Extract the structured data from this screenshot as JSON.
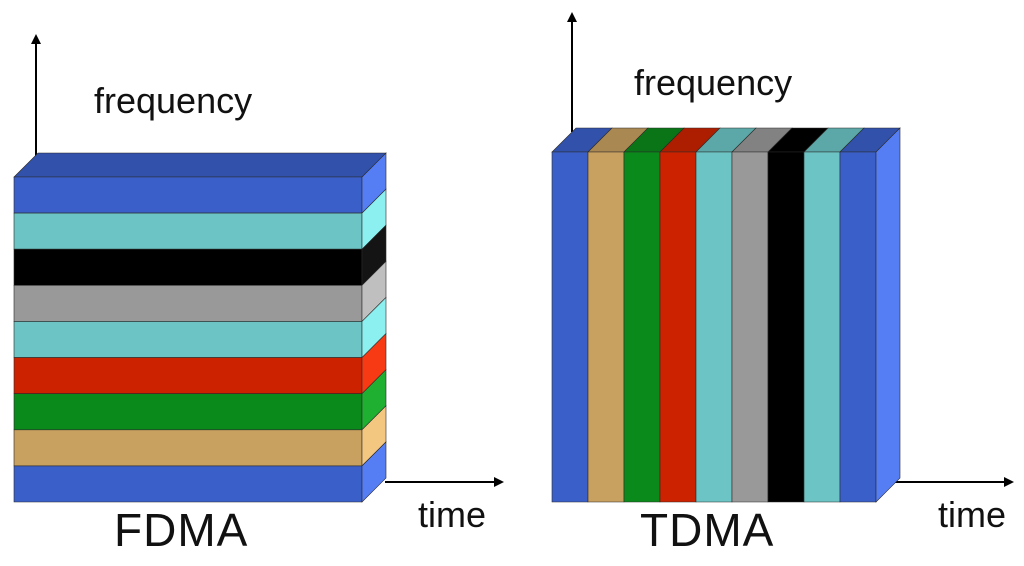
{
  "fdma": {
    "y_axis_label": "frequency",
    "x_axis_label": "time",
    "title": "FDMA",
    "bands": [
      "#3a5fc8",
      "#6cc4c4",
      "#000000",
      "#999999",
      "#6cc4c4",
      "#cc2200",
      "#0a8a1a",
      "#c8a060",
      "#3a5fc8"
    ]
  },
  "tdma": {
    "y_axis_label": "frequency",
    "x_axis_label": "time",
    "title": "TDMA",
    "slots": [
      "#3a5fc8",
      "#c8a060",
      "#0a8a1a",
      "#cc2200",
      "#6cc4c4",
      "#999999",
      "#000000",
      "#6cc4c4",
      "#3a5fc8"
    ]
  }
}
